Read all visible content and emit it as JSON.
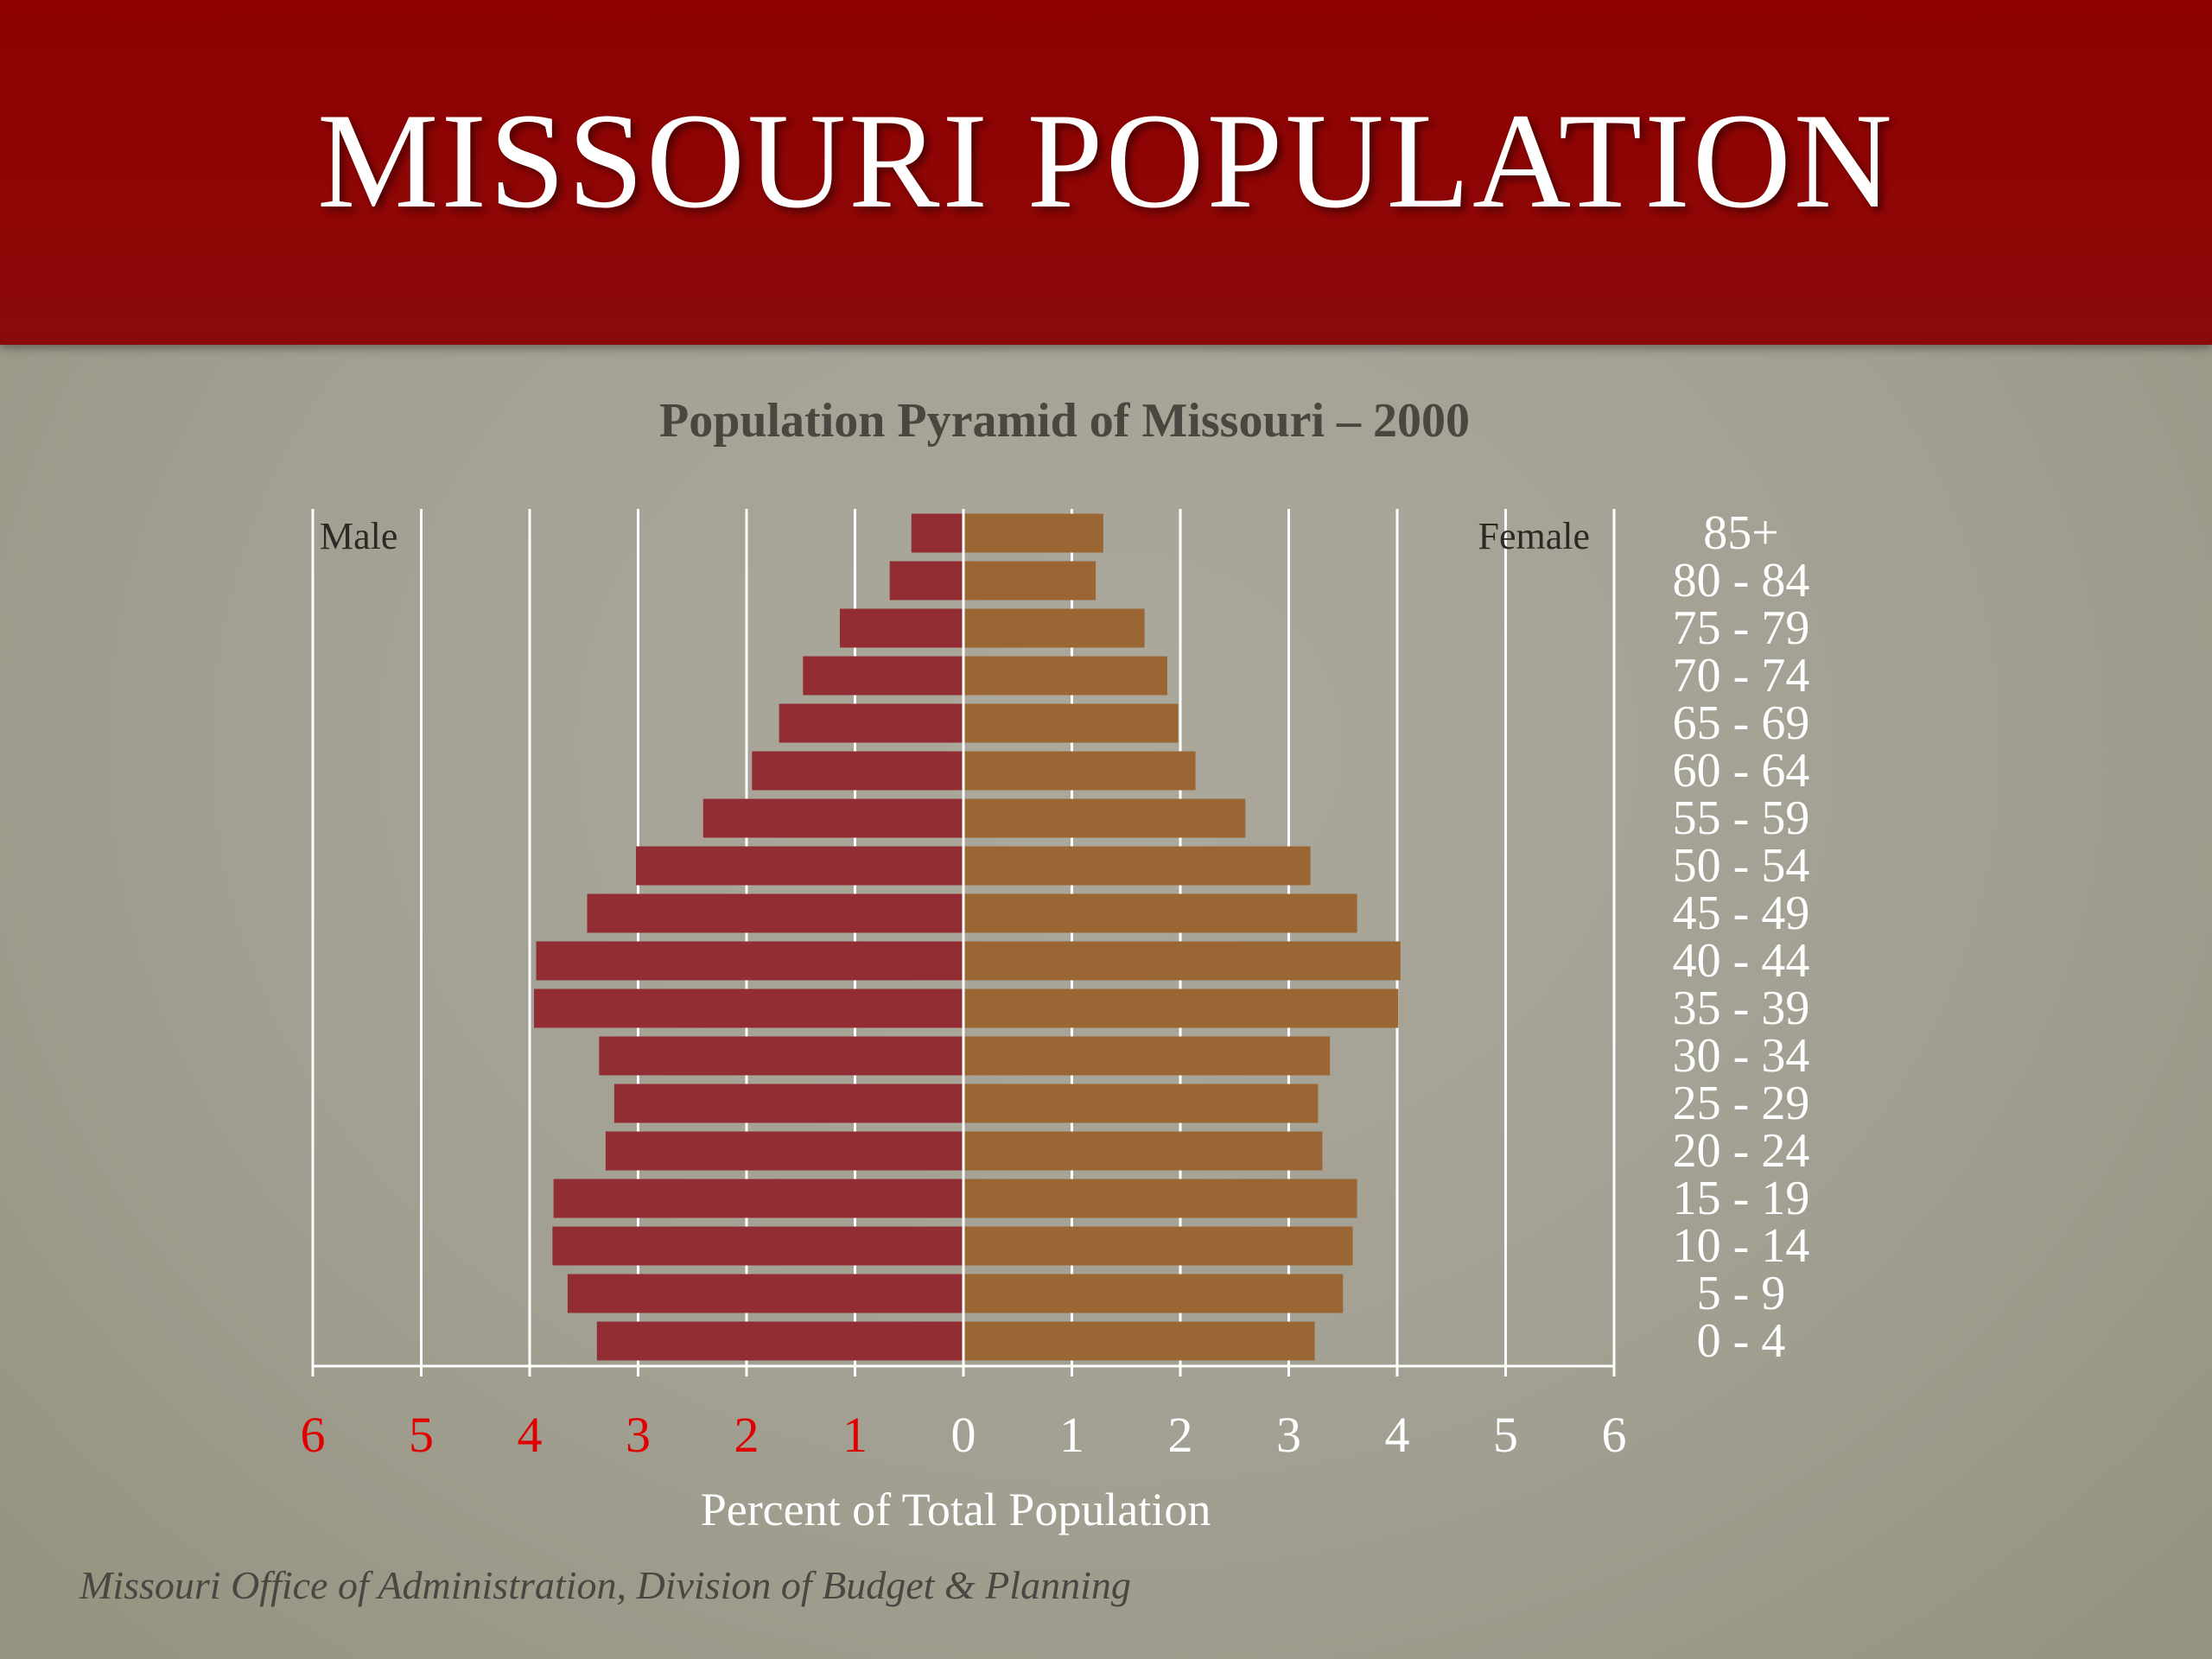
{
  "slide": {
    "title": "MISSOURI POPULATION",
    "source": "Missouri Office of  Administration, Division of  Budget & Planning"
  },
  "colors": {
    "banner": "#8c0000",
    "male_bar": "#922d33",
    "female_bar": "#9a6633",
    "grid": "#ffffff",
    "negative_tick": "#e00000"
  },
  "chart_data": {
    "type": "bar",
    "orientation": "horizontal-pyramid",
    "title": "Population Pyramid of Missouri – 2000",
    "xlabel": "Percent of Total Population",
    "xlim": [
      -6,
      6
    ],
    "x_ticks": [
      -6,
      -5,
      -4,
      -3,
      -2,
      -1,
      0,
      1,
      2,
      3,
      4,
      5,
      6
    ],
    "x_tick_labels": [
      "6",
      "5",
      "4",
      "3",
      "2",
      "1",
      "0",
      "1",
      "2",
      "3",
      "4",
      "5",
      "6"
    ],
    "grid": true,
    "categories": [
      "85+",
      "80 - 84",
      "75 - 79",
      "70 - 74",
      "65 - 69",
      "60 - 64",
      "55 - 59",
      "50 - 54",
      "45 - 49",
      "40 - 44",
      "35 - 39",
      "30 - 34",
      "25 - 29",
      "20 - 24",
      "15 - 19",
      "10 - 14",
      "5 - 9",
      "0 - 4"
    ],
    "series": [
      {
        "name": "Male",
        "side": "left",
        "values": [
          0.48,
          0.68,
          1.14,
          1.48,
          1.7,
          1.95,
          2.4,
          3.02,
          3.47,
          3.94,
          3.96,
          3.36,
          3.22,
          3.3,
          3.78,
          3.79,
          3.65,
          3.38
        ]
      },
      {
        "name": "Female",
        "side": "right",
        "values": [
          1.29,
          1.22,
          1.67,
          1.88,
          1.98,
          2.14,
          2.6,
          3.2,
          3.63,
          4.03,
          4.01,
          3.38,
          3.27,
          3.31,
          3.63,
          3.59,
          3.5,
          3.24
        ]
      }
    ]
  }
}
